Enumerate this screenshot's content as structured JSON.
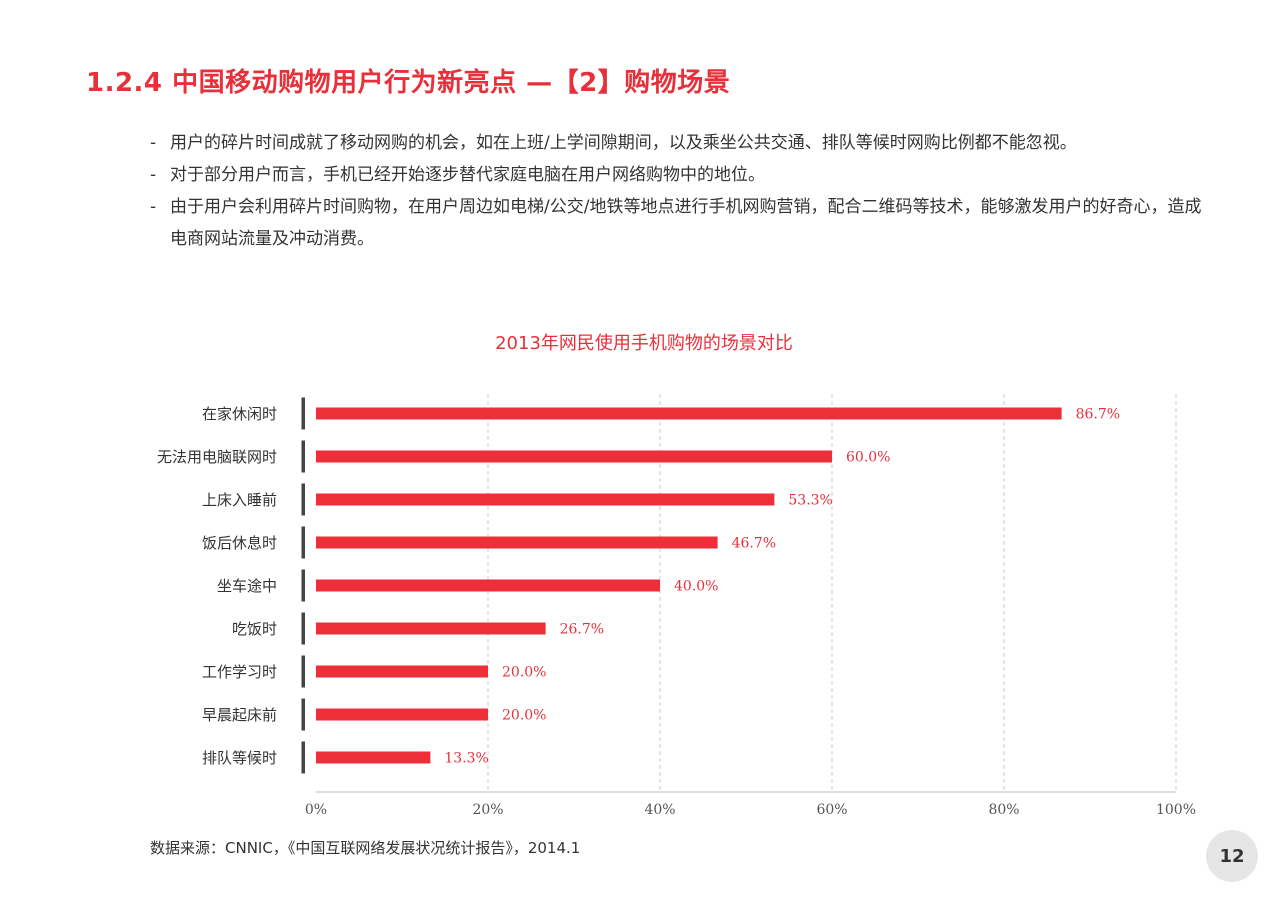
{
  "page": {
    "title": "1.2.4 中国移动购物用户行为新亮点 —【2】购物场景",
    "bullet_marker": "-",
    "bullets": [
      "用户的碎片时间成就了移动网购的机会，如在上班/上学间隙期间，以及乘坐公共交通、排队等候时网购比例都不能忽视。",
      "对于部分用户而言，手机已经开始逐步替代家庭电脑在用户网络购物中的地位。",
      "由于用户会利用碎片时间购物，在用户周边如电梯/公交/地铁等地点进行手机网购营销，配合二维码等技术，能够激发用户的好奇心，造成电商网站流量及冲动消费。"
    ],
    "source": "数据来源：CNNIC，《中国互联网络发展状况统计报告》，2014.1",
    "page_number": "12"
  },
  "colors": {
    "accent": "#e8303a",
    "bar": "#ee2f3a",
    "axis": "#444444",
    "grid": "#cccccc"
  },
  "chart_data": {
    "type": "bar",
    "orientation": "horizontal",
    "title": "2013年网民使用手机购物的场景对比",
    "categories": [
      "在家休闲时",
      "无法用电脑联网时",
      "上床入睡前",
      "饭后休息时",
      "坐车途中",
      "吃饭时",
      "工作学习时",
      "早晨起床前",
      "排队等候时"
    ],
    "values": [
      86.7,
      60.0,
      53.3,
      46.7,
      40.0,
      26.7,
      20.0,
      20.0,
      13.3
    ],
    "value_labels": [
      "86.7%",
      "60.0%",
      "53.3%",
      "46.7%",
      "40.0%",
      "26.7%",
      "20.0%",
      "20.0%",
      "13.3%"
    ],
    "xlim": [
      0,
      100
    ],
    "xticks": [
      0,
      20,
      40,
      60,
      80,
      100
    ],
    "xtick_labels": [
      "0%",
      "20%",
      "40%",
      "60%",
      "80%",
      "100%"
    ],
    "grid": "vertical dashed",
    "legend": "none"
  }
}
